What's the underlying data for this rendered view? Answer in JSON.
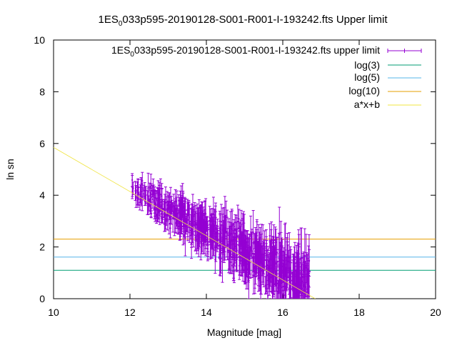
{
  "chart_data": {
    "type": "scatter",
    "title": {
      "prefix": "1ES",
      "sub": "0",
      "rest": "033p595-20190128-S001-R001-I-193242.fts Upper limit"
    },
    "xlabel": "Magnitude [mag]",
    "ylabel": "ln sn",
    "xlim": [
      10,
      20
    ],
    "ylim": [
      0,
      10
    ],
    "xticks": [
      "10",
      "12",
      "14",
      "16",
      "18",
      "20"
    ],
    "yticks": [
      "0",
      "2",
      "4",
      "6",
      "8",
      "10"
    ],
    "grid": false,
    "legend_position": "top-right",
    "colors": {
      "points": "#9400d3",
      "log3": "#009e73",
      "log5": "#56b4e9",
      "log10": "#e69f00",
      "fit": "#f0e442"
    },
    "series": [
      {
        "name": {
          "prefix": "1ES",
          "sub": "0",
          "rest": "033p595-20190128-S001-R001-I-193242.fts upper limit"
        },
        "type": "errorbars",
        "x_range": [
          12.05,
          16.7
        ],
        "y_at_12": 4.3,
        "y_at_16": 1.0,
        "error_spread": 0.4
      },
      {
        "name": "log(3)",
        "type": "hline",
        "y": 1.0986
      },
      {
        "name": "log(5)",
        "type": "hline",
        "y": 1.6094
      },
      {
        "name": "log(10)",
        "type": "hline",
        "y": 2.3026
      },
      {
        "name": "a*x+b",
        "type": "fitline",
        "points": [
          [
            10,
            5.85
          ],
          [
            16.85,
            0
          ]
        ]
      }
    ]
  }
}
